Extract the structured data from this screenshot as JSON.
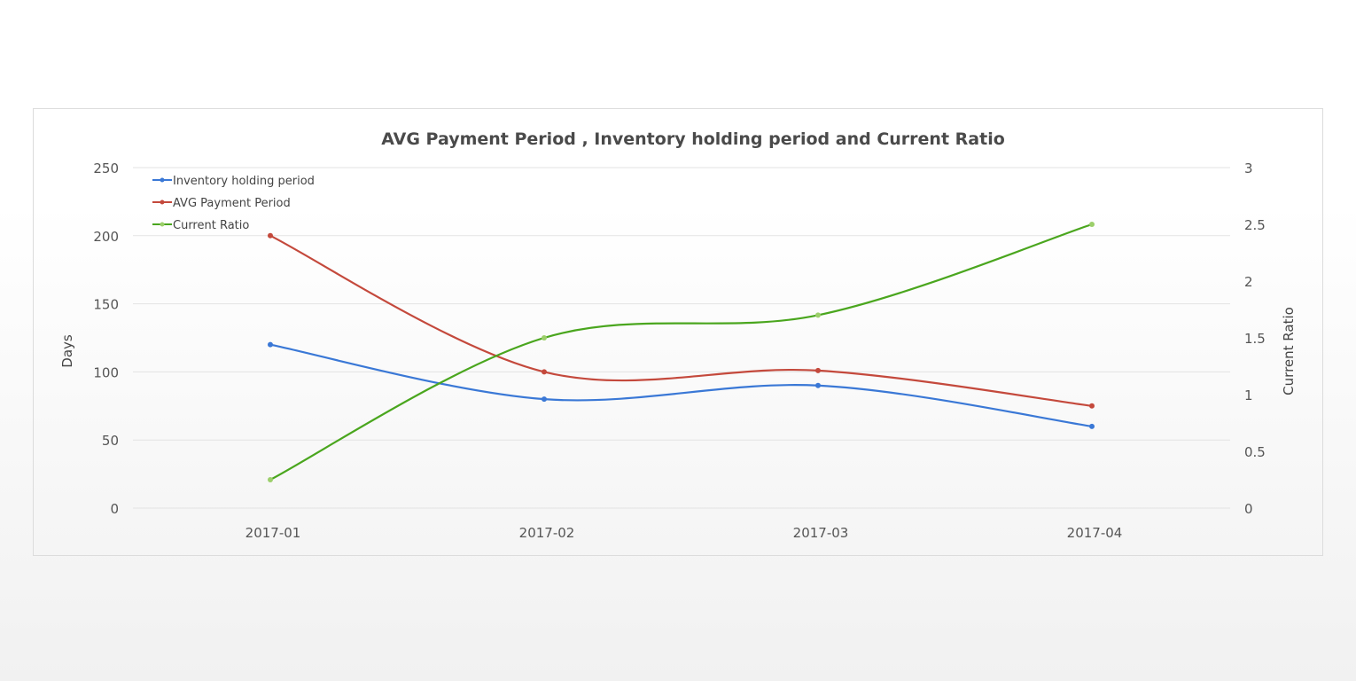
{
  "chart_data": {
    "type": "line",
    "title": "AVG Payment Period  , Inventory holding period  and Current Ratio",
    "categories": [
      "2017-01",
      "2017-02",
      "2017-03",
      "2017-04"
    ],
    "ylabel": "Days",
    "y2label": "Current Ratio",
    "ylim": [
      0,
      250
    ],
    "y2lim": [
      0,
      3
    ],
    "yticks": [
      0,
      50,
      100,
      150,
      200,
      250
    ],
    "y2ticks": [
      "0",
      "0.5",
      "1",
      "1.5",
      "2",
      "2.5",
      "3"
    ],
    "grid": true,
    "legend_position": "top-left",
    "series": [
      {
        "name": "Inventory holding period",
        "axis": "left",
        "color": "#3a78d6",
        "values": [
          120,
          80,
          90,
          60
        ]
      },
      {
        "name": "AVG Payment Period",
        "axis": "left",
        "color": "#c4493c",
        "values": [
          200,
          100,
          101,
          75
        ]
      },
      {
        "name": "Current Ratio",
        "axis": "right",
        "color": "#4aa61e",
        "marker_color": "#9ccf6b",
        "values": [
          0.25,
          1.5,
          1.7,
          2.5
        ]
      }
    ]
  }
}
